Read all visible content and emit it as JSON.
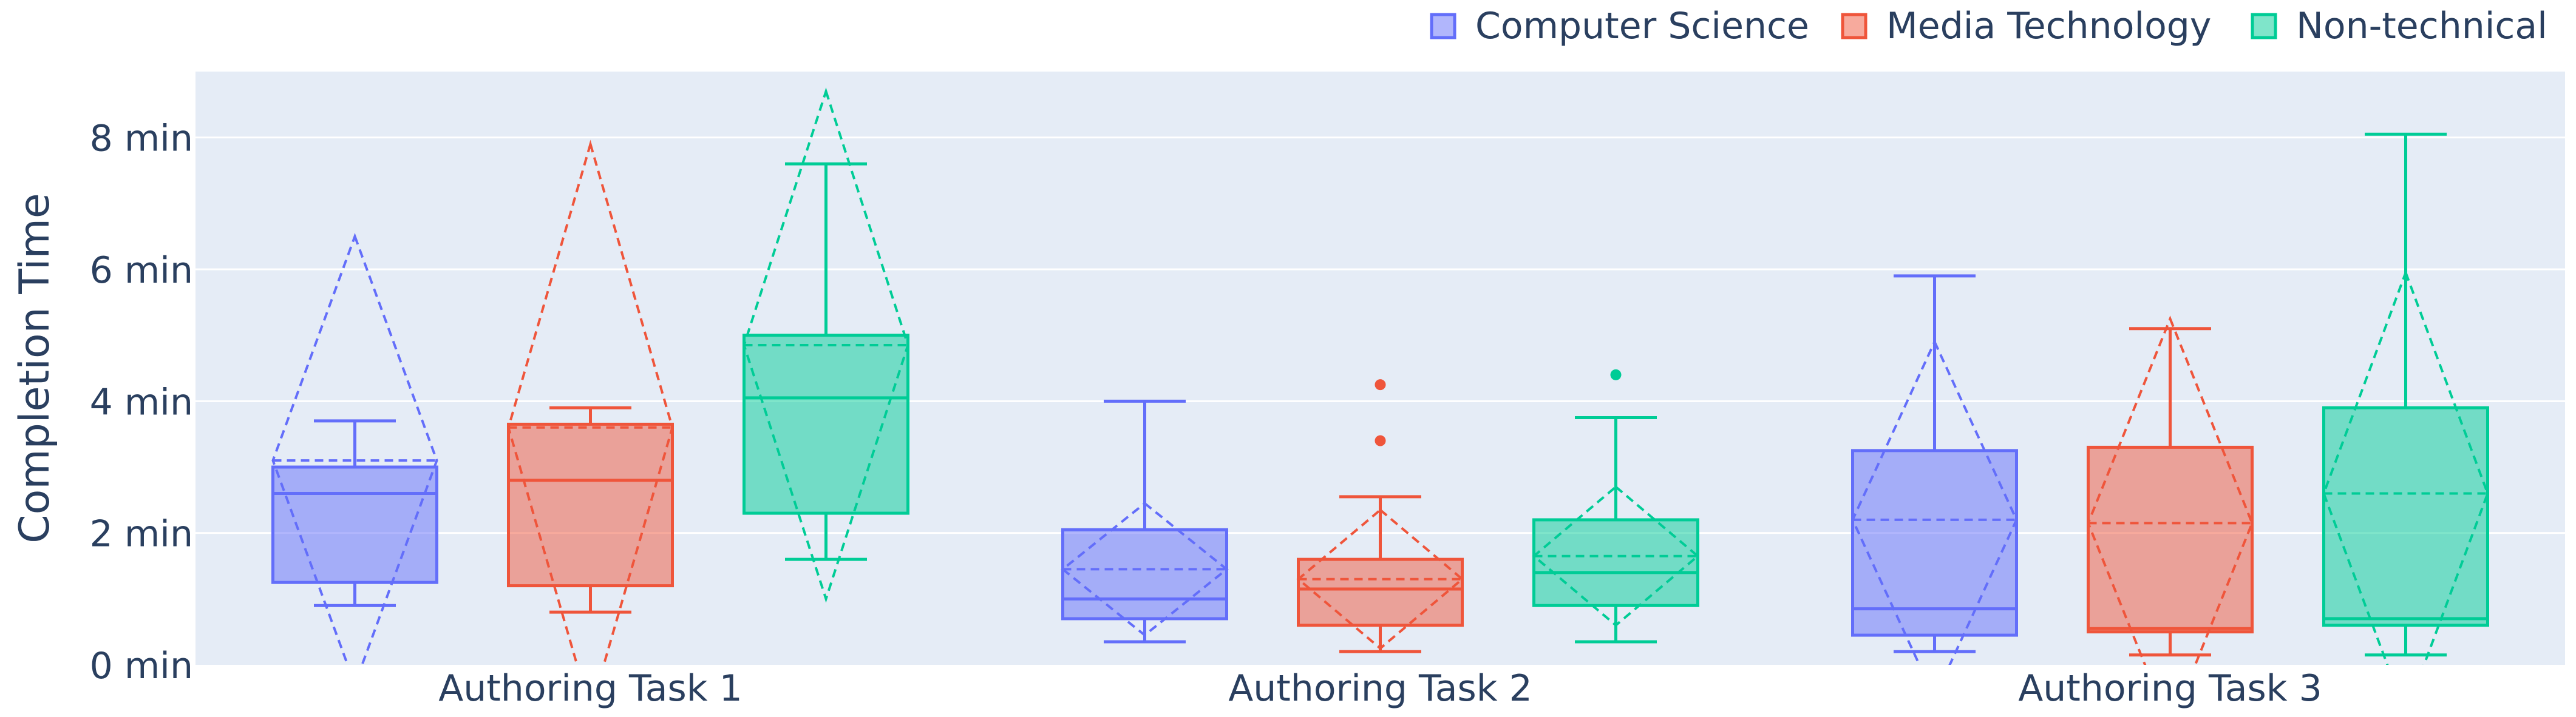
{
  "chart_data": {
    "type": "box",
    "ylabel": "Completion Time",
    "ylim": [
      0,
      9
    ],
    "y_ticks": [
      0,
      2,
      4,
      6,
      8
    ],
    "y_tick_labels": [
      "0 min",
      "2 min",
      "4 min",
      "6 min",
      "8 min"
    ],
    "grid": true,
    "legend_position": "top-right",
    "categories": [
      "Authoring Task 1",
      "Authoring Task 2",
      "Authoring Task 3"
    ],
    "series": [
      {
        "name": "Computer Science",
        "color": "#636efa",
        "boxes": [
          {
            "category": "Authoring Task 1",
            "min": 0.9,
            "q1": 1.25,
            "median": 2.6,
            "q3": 3.0,
            "max": 3.7,
            "mean": 3.1,
            "sd": 3.4,
            "outliers": []
          },
          {
            "category": "Authoring Task 2",
            "min": 0.35,
            "q1": 0.7,
            "median": 1.0,
            "q3": 2.05,
            "max": 4.0,
            "mean": 1.45,
            "sd": 1.0,
            "outliers": []
          },
          {
            "category": "Authoring Task 3",
            "min": 0.2,
            "q1": 0.45,
            "median": 0.85,
            "q3": 3.25,
            "max": 5.9,
            "mean": 2.2,
            "sd": 2.7,
            "outliers": []
          }
        ]
      },
      {
        "name": "Media Technology",
        "color": "#ef553b",
        "boxes": [
          {
            "category": "Authoring Task 1",
            "min": 0.8,
            "q1": 1.2,
            "median": 2.8,
            "q3": 3.65,
            "max": 3.9,
            "mean": 3.6,
            "sd": 4.3,
            "outliers": []
          },
          {
            "category": "Authoring Task 2",
            "min": 0.2,
            "q1": 0.6,
            "median": 1.15,
            "q3": 1.6,
            "max": 2.55,
            "mean": 1.3,
            "sd": 1.05,
            "outliers": [
              3.4,
              4.25
            ]
          },
          {
            "category": "Authoring Task 3",
            "min": 0.15,
            "q1": 0.5,
            "median": 0.55,
            "q3": 3.3,
            "max": 5.1,
            "mean": 2.15,
            "sd": 3.1,
            "outliers": []
          }
        ]
      },
      {
        "name": "Non-technical",
        "color": "#00cc96",
        "boxes": [
          {
            "category": "Authoring Task 1",
            "min": 1.6,
            "q1": 2.3,
            "median": 4.05,
            "q3": 5.0,
            "max": 7.6,
            "mean": 4.85,
            "sd": 3.85,
            "outliers": []
          },
          {
            "category": "Authoring Task 2",
            "min": 0.35,
            "q1": 0.9,
            "median": 1.4,
            "q3": 2.2,
            "max": 3.75,
            "mean": 1.65,
            "sd": 1.05,
            "outliers": [
              4.4
            ]
          },
          {
            "category": "Authoring Task 3",
            "min": 0.15,
            "q1": 0.6,
            "median": 0.7,
            "q3": 3.9,
            "max": 8.05,
            "mean": 2.6,
            "sd": 3.35,
            "outliers": []
          }
        ]
      }
    ]
  }
}
